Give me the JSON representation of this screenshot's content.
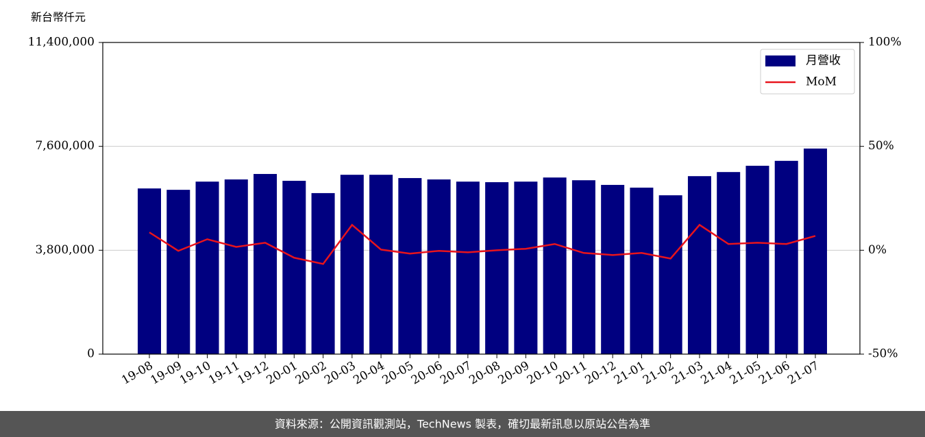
{
  "chart_data": {
    "type": "bar-line",
    "y_label": "新台幣仟元",
    "categories": [
      "19-08",
      "19-09",
      "19-10",
      "19-11",
      "19-12",
      "20-01",
      "20-02",
      "20-03",
      "20-04",
      "20-05",
      "20-06",
      "20-07",
      "20-08",
      "20-09",
      "20-10",
      "20-11",
      "20-12",
      "21-01",
      "21-02",
      "21-03",
      "21-04",
      "21-05",
      "21-06",
      "21-07"
    ],
    "series": [
      {
        "name": "月營收",
        "color": "#000080",
        "type": "bar",
        "values": [
          6060000,
          6010000,
          6310000,
          6390000,
          6590000,
          6340000,
          5890000,
          6560000,
          6560000,
          6440000,
          6390000,
          6310000,
          6290000,
          6310000,
          6460000,
          6360000,
          6190000,
          6090000,
          5810000,
          6510000,
          6660000,
          6890000,
          7070000,
          7520000
        ]
      },
      {
        "name": "MoM",
        "color": "#e8141c",
        "type": "line",
        "axis": "y2",
        "values": [
          8.6,
          -0.3,
          5.3,
          1.6,
          3.6,
          -3.6,
          -6.6,
          12.2,
          0.3,
          -1.6,
          -0.3,
          -1.0,
          0.0,
          0.7,
          3.0,
          -1.3,
          -2.3,
          -1.3,
          -4.0,
          12.2,
          3.0,
          3.6,
          3.0,
          6.9
        ]
      }
    ],
    "ylim": [
      0,
      11400000
    ],
    "yticks": [
      0,
      {
        "value": 3800000,
        "label": "3,800,000"
      },
      {
        "value": 7600000,
        "label": "7,600,000"
      },
      {
        "value": 11400000,
        "label": "11,400,000"
      }
    ],
    "y2lim": [
      -50,
      100
    ],
    "y2ticks": [
      {
        "value": -50,
        "label": "-50%"
      },
      {
        "value": 0,
        "label": "0%"
      },
      {
        "value": 50,
        "label": "50%"
      },
      {
        "value": 100,
        "label": "100%"
      }
    ],
    "grid": true,
    "legend": "upper-right",
    "footer": "資料來源：公開資訊觀測站，TechNews 製表，確切最新訊息以原站公告為準"
  }
}
